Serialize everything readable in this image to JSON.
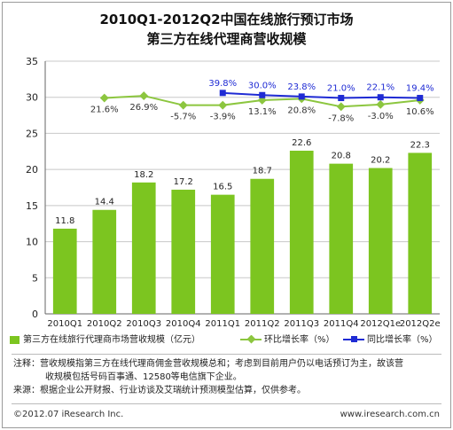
{
  "chart_data": {
    "type": "bar",
    "title": "2010Q1-2012Q2中国在线旅行预订市场",
    "subtitle": "第三方在线代理商营收规模",
    "categories": [
      "2010Q1",
      "2010Q2",
      "2010Q3",
      "2010Q4",
      "2011Q1",
      "2011Q2",
      "2011Q3",
      "2011Q4",
      "2012Q1e",
      "2012Q2e"
    ],
    "ylim": [
      0,
      35
    ],
    "yticks": [
      0,
      5,
      10,
      15,
      20,
      25,
      30,
      35
    ],
    "grid": true,
    "legend_position": "bottom",
    "series": [
      {
        "name": "第三方在线旅行代理商市场营收规模（亿元）",
        "kind": "bar",
        "color": "#7cc520",
        "values": [
          11.8,
          14.4,
          18.2,
          17.2,
          16.5,
          18.7,
          22.6,
          20.8,
          20.2,
          22.3
        ],
        "labels": [
          "11.8",
          "14.4",
          "18.2",
          "17.2",
          "16.5",
          "18.7",
          "22.6",
          "20.8",
          "20.2",
          "22.3"
        ]
      },
      {
        "name": "环比增长率（%）",
        "kind": "line",
        "color": "#8cc63f",
        "values": [
          null,
          21.6,
          26.9,
          -5.7,
          -3.9,
          13.1,
          20.8,
          -7.8,
          -3.0,
          10.6
        ],
        "labels": [
          null,
          "21.6%",
          "26.9%",
          "-5.7%",
          "-3.9%",
          "13.1%",
          "20.8%",
          "-7.8%",
          "-3.0%",
          "10.6%"
        ],
        "plot_y": [
          null,
          29.9,
          30.2,
          28.9,
          28.9,
          29.6,
          29.8,
          28.7,
          29.0,
          29.6
        ]
      },
      {
        "name": "同比增长率（%）",
        "kind": "line",
        "color": "#1f2bd4",
        "values": [
          null,
          null,
          null,
          null,
          39.8,
          30.0,
          23.8,
          21.0,
          22.1,
          19.4
        ],
        "labels": [
          null,
          null,
          null,
          null,
          "39.8%",
          "30.0%",
          "23.8%",
          "21.0%",
          "22.1%",
          "19.4%"
        ],
        "plot_y": [
          null,
          null,
          null,
          null,
          30.6,
          30.3,
          30.1,
          29.9,
          30.0,
          29.9
        ]
      }
    ]
  },
  "notes": {
    "note1": "注释：营收规模指第三方在线代理商佣金营收规模总和；考虑到目前用户仍以电话预订为主，故该营",
    "note2": "收规模包括号码百事通、12580等电信旗下企业。",
    "source": "来源：根据企业公开财报、行业访谈及艾瑞统计预测模型估算，仅供参考。"
  },
  "footer": {
    "copyright": "©2012.07 iResearch Inc.",
    "website": "www.iresearch.com.cn"
  }
}
